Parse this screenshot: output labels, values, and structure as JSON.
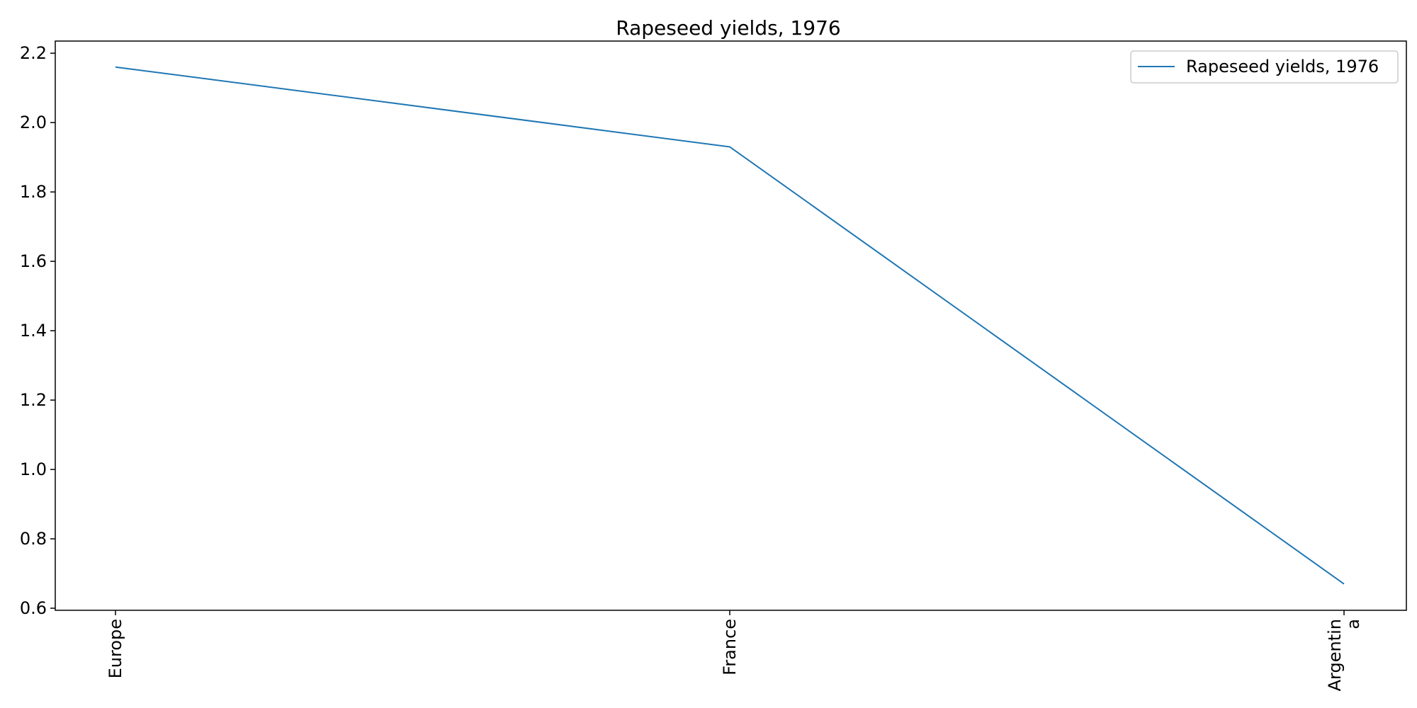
{
  "chart_data": {
    "type": "line",
    "title": "Rapeseed yields, 1976",
    "xlabel": "",
    "ylabel": "",
    "categories": [
      "Europe",
      "France",
      "Argentina"
    ],
    "tick_label_lines": [
      [
        "Europe"
      ],
      [
        "France"
      ],
      [
        "Argentin",
        "a"
      ]
    ],
    "series": [
      {
        "name": "Rapeseed yields, 1976",
        "values": [
          2.16,
          1.93,
          0.67
        ],
        "color": "#1f77b4"
      }
    ],
    "ylim": [
      0.594,
      2.235
    ],
    "yticks": [
      0.6,
      0.8,
      1.0,
      1.2,
      1.4,
      1.6,
      1.8,
      2.0,
      2.2
    ],
    "ytick_labels": [
      "0.6",
      "0.8",
      "1.0",
      "1.2",
      "1.4",
      "1.6",
      "1.8",
      "2.0",
      "2.2"
    ],
    "grid": false,
    "legend_position": "top-right"
  }
}
